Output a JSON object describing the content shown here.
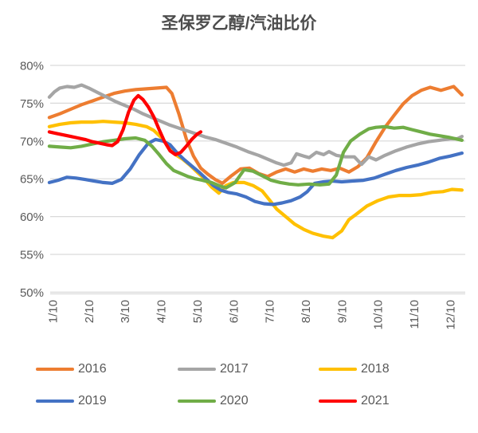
{
  "title": "圣保罗乙醇/汽油比价",
  "chart_data": {
    "type": "line",
    "title": "圣保罗乙醇/汽油比价",
    "grid": true,
    "legend_position": "bottom",
    "ylim": [
      50,
      80
    ],
    "xlim": [
      0.91,
      12.33
    ],
    "x_tick_labels": [
      "1/10",
      "2/10",
      "3/10",
      "4/10",
      "5/10",
      "6/10",
      "7/10",
      "8/10",
      "9/10",
      "10/10",
      "11/10",
      "12/10"
    ],
    "y_ticks": [
      {
        "value": 80,
        "label": "80%"
      },
      {
        "value": 75,
        "label": "75%"
      },
      {
        "value": 70,
        "label": "70%"
      },
      {
        "value": 65,
        "label": "65%"
      },
      {
        "value": 60,
        "label": "60%"
      },
      {
        "value": 55,
        "label": "55%"
      },
      {
        "value": 50,
        "label": "50%"
      }
    ],
    "series": [
      {
        "name": "2016",
        "color": "#ED7D31",
        "points": [
          [
            0.91,
            73.1
          ],
          [
            1.2,
            73.6
          ],
          [
            1.5,
            74.2
          ],
          [
            1.8,
            74.8
          ],
          [
            2.1,
            75.3
          ],
          [
            2.4,
            75.8
          ],
          [
            2.7,
            76.3
          ],
          [
            3.0,
            76.6
          ],
          [
            3.3,
            76.8
          ],
          [
            3.6,
            76.9
          ],
          [
            3.9,
            77.0
          ],
          [
            4.15,
            77.1
          ],
          [
            4.3,
            76.3
          ],
          [
            4.5,
            73.5
          ],
          [
            4.7,
            70.3
          ],
          [
            4.9,
            68.0
          ],
          [
            5.1,
            66.4
          ],
          [
            5.3,
            65.6
          ],
          [
            5.5,
            64.9
          ],
          [
            5.7,
            64.4
          ],
          [
            5.95,
            65.4
          ],
          [
            6.2,
            66.3
          ],
          [
            6.45,
            66.4
          ],
          [
            6.7,
            65.7
          ],
          [
            6.95,
            65.3
          ],
          [
            7.2,
            65.9
          ],
          [
            7.45,
            66.3
          ],
          [
            7.7,
            65.9
          ],
          [
            7.95,
            66.3
          ],
          [
            8.2,
            66.0
          ],
          [
            8.45,
            66.3
          ],
          [
            8.7,
            66.1
          ],
          [
            8.95,
            66.4
          ],
          [
            9.2,
            65.9
          ],
          [
            9.45,
            66.6
          ],
          [
            9.7,
            67.8
          ],
          [
            9.95,
            69.9
          ],
          [
            10.2,
            71.8
          ],
          [
            10.45,
            73.4
          ],
          [
            10.7,
            74.9
          ],
          [
            10.95,
            76.0
          ],
          [
            11.2,
            76.7
          ],
          [
            11.45,
            77.1
          ],
          [
            11.75,
            76.7
          ],
          [
            12.1,
            77.2
          ],
          [
            12.33,
            76.1
          ]
        ]
      },
      {
        "name": "2017",
        "color": "#A5A5A5",
        "points": [
          [
            0.91,
            75.8
          ],
          [
            1.05,
            76.5
          ],
          [
            1.2,
            77.0
          ],
          [
            1.4,
            77.2
          ],
          [
            1.6,
            77.1
          ],
          [
            1.8,
            77.4
          ],
          [
            2.0,
            77.0
          ],
          [
            2.25,
            76.4
          ],
          [
            2.5,
            75.8
          ],
          [
            2.75,
            75.2
          ],
          [
            3.0,
            74.7
          ],
          [
            3.25,
            74.2
          ],
          [
            3.5,
            73.6
          ],
          [
            3.75,
            73.1
          ],
          [
            4.0,
            72.6
          ],
          [
            4.25,
            72.1
          ],
          [
            4.5,
            71.7
          ],
          [
            4.75,
            71.3
          ],
          [
            5.0,
            70.9
          ],
          [
            5.25,
            70.5
          ],
          [
            5.5,
            70.2
          ],
          [
            5.8,
            69.7
          ],
          [
            6.1,
            69.2
          ],
          [
            6.4,
            68.6
          ],
          [
            6.7,
            68.1
          ],
          [
            6.95,
            67.6
          ],
          [
            7.2,
            67.1
          ],
          [
            7.4,
            66.8
          ],
          [
            7.6,
            67.1
          ],
          [
            7.75,
            68.3
          ],
          [
            7.95,
            68.0
          ],
          [
            8.1,
            67.8
          ],
          [
            8.3,
            68.5
          ],
          [
            8.5,
            68.2
          ],
          [
            8.65,
            68.6
          ],
          [
            8.85,
            68.1
          ],
          [
            9.1,
            67.9
          ],
          [
            9.35,
            67.9
          ],
          [
            9.55,
            66.9
          ],
          [
            9.75,
            67.9
          ],
          [
            9.95,
            67.5
          ],
          [
            10.2,
            68.1
          ],
          [
            10.5,
            68.7
          ],
          [
            10.8,
            69.2
          ],
          [
            11.1,
            69.6
          ],
          [
            11.4,
            69.9
          ],
          [
            11.7,
            70.1
          ],
          [
            12.0,
            70.3
          ],
          [
            12.2,
            70.3
          ],
          [
            12.33,
            70.6
          ]
        ]
      },
      {
        "name": "2018",
        "color": "#FFC000",
        "points": [
          [
            0.91,
            71.9
          ],
          [
            1.2,
            72.2
          ],
          [
            1.5,
            72.4
          ],
          [
            1.8,
            72.5
          ],
          [
            2.1,
            72.5
          ],
          [
            2.4,
            72.6
          ],
          [
            2.7,
            72.5
          ],
          [
            3.0,
            72.4
          ],
          [
            3.3,
            72.2
          ],
          [
            3.6,
            71.9
          ],
          [
            3.8,
            71.4
          ],
          [
            4.0,
            70.5
          ],
          [
            4.2,
            69.3
          ],
          [
            4.4,
            68.2
          ],
          [
            4.6,
            67.6
          ],
          [
            4.8,
            66.8
          ],
          [
            5.0,
            65.9
          ],
          [
            5.2,
            65.0
          ],
          [
            5.4,
            63.9
          ],
          [
            5.6,
            63.1
          ],
          [
            5.8,
            64.1
          ],
          [
            6.0,
            64.5
          ],
          [
            6.3,
            64.5
          ],
          [
            6.55,
            64.1
          ],
          [
            6.8,
            63.4
          ],
          [
            7.0,
            62.2
          ],
          [
            7.2,
            61.0
          ],
          [
            7.45,
            60.0
          ],
          [
            7.7,
            59.0
          ],
          [
            7.95,
            58.3
          ],
          [
            8.2,
            57.8
          ],
          [
            8.5,
            57.4
          ],
          [
            8.75,
            57.2
          ],
          [
            9.0,
            58.1
          ],
          [
            9.2,
            59.6
          ],
          [
            9.4,
            60.3
          ],
          [
            9.7,
            61.4
          ],
          [
            10.0,
            62.1
          ],
          [
            10.3,
            62.6
          ],
          [
            10.6,
            62.8
          ],
          [
            10.9,
            62.8
          ],
          [
            11.2,
            62.9
          ],
          [
            11.5,
            63.2
          ],
          [
            11.8,
            63.3
          ],
          [
            12.05,
            63.6
          ],
          [
            12.33,
            63.5
          ]
        ]
      },
      {
        "name": "2019",
        "color": "#4472C4",
        "points": [
          [
            0.91,
            64.5
          ],
          [
            1.15,
            64.8
          ],
          [
            1.4,
            65.2
          ],
          [
            1.65,
            65.1
          ],
          [
            1.9,
            64.9
          ],
          [
            2.15,
            64.7
          ],
          [
            2.4,
            64.5
          ],
          [
            2.65,
            64.4
          ],
          [
            2.9,
            64.9
          ],
          [
            3.15,
            66.3
          ],
          [
            3.4,
            68.2
          ],
          [
            3.65,
            69.7
          ],
          [
            3.85,
            70.2
          ],
          [
            4.05,
            70.0
          ],
          [
            4.25,
            69.5
          ],
          [
            4.45,
            68.4
          ],
          [
            4.65,
            67.5
          ],
          [
            4.85,
            66.7
          ],
          [
            5.05,
            65.9
          ],
          [
            5.25,
            65.0
          ],
          [
            5.45,
            64.1
          ],
          [
            5.65,
            63.5
          ],
          [
            5.85,
            63.2
          ],
          [
            6.1,
            63.0
          ],
          [
            6.35,
            62.6
          ],
          [
            6.6,
            62.0
          ],
          [
            6.85,
            61.7
          ],
          [
            7.1,
            61.6
          ],
          [
            7.35,
            61.8
          ],
          [
            7.6,
            62.1
          ],
          [
            7.85,
            62.6
          ],
          [
            8.05,
            63.3
          ],
          [
            8.25,
            64.4
          ],
          [
            8.5,
            64.6
          ],
          [
            8.75,
            64.7
          ],
          [
            9.0,
            64.6
          ],
          [
            9.3,
            64.7
          ],
          [
            9.6,
            64.8
          ],
          [
            9.9,
            65.1
          ],
          [
            10.2,
            65.6
          ],
          [
            10.5,
            66.1
          ],
          [
            10.8,
            66.5
          ],
          [
            11.1,
            66.8
          ],
          [
            11.4,
            67.2
          ],
          [
            11.7,
            67.7
          ],
          [
            12.0,
            68.0
          ],
          [
            12.33,
            68.4
          ]
        ]
      },
      {
        "name": "2020",
        "color": "#70AD47",
        "points": [
          [
            0.91,
            69.3
          ],
          [
            1.2,
            69.2
          ],
          [
            1.5,
            69.1
          ],
          [
            1.8,
            69.3
          ],
          [
            2.1,
            69.6
          ],
          [
            2.4,
            69.9
          ],
          [
            2.7,
            70.1
          ],
          [
            3.0,
            70.3
          ],
          [
            3.3,
            70.4
          ],
          [
            3.55,
            70.1
          ],
          [
            3.75,
            69.3
          ],
          [
            3.95,
            68.2
          ],
          [
            4.15,
            67.0
          ],
          [
            4.35,
            66.1
          ],
          [
            4.55,
            65.7
          ],
          [
            4.75,
            65.3
          ],
          [
            4.95,
            65.0
          ],
          [
            5.15,
            64.8
          ],
          [
            5.4,
            64.5
          ],
          [
            5.6,
            64.1
          ],
          [
            5.8,
            63.8
          ],
          [
            6.05,
            64.5
          ],
          [
            6.3,
            66.2
          ],
          [
            6.55,
            66.0
          ],
          [
            6.8,
            65.4
          ],
          [
            7.05,
            64.8
          ],
          [
            7.3,
            64.5
          ],
          [
            7.55,
            64.3
          ],
          [
            7.8,
            64.2
          ],
          [
            8.1,
            64.3
          ],
          [
            8.4,
            64.2
          ],
          [
            8.65,
            64.3
          ],
          [
            8.85,
            65.5
          ],
          [
            9.05,
            68.5
          ],
          [
            9.25,
            70.0
          ],
          [
            9.5,
            70.9
          ],
          [
            9.75,
            71.6
          ],
          [
            9.95,
            71.8
          ],
          [
            10.2,
            71.9
          ],
          [
            10.45,
            71.7
          ],
          [
            10.7,
            71.8
          ],
          [
            10.95,
            71.5
          ],
          [
            11.2,
            71.2
          ],
          [
            11.45,
            70.9
          ],
          [
            11.7,
            70.7
          ],
          [
            11.95,
            70.5
          ],
          [
            12.15,
            70.3
          ],
          [
            12.33,
            70.1
          ]
        ]
      },
      {
        "name": "2021",
        "color": "#FF0000",
        "points": [
          [
            0.91,
            71.2
          ],
          [
            1.1,
            71.0
          ],
          [
            1.3,
            70.8
          ],
          [
            1.5,
            70.6
          ],
          [
            1.7,
            70.4
          ],
          [
            1.9,
            70.2
          ],
          [
            2.1,
            69.9
          ],
          [
            2.3,
            69.7
          ],
          [
            2.5,
            69.5
          ],
          [
            2.65,
            69.4
          ],
          [
            2.8,
            69.9
          ],
          [
            2.95,
            71.5
          ],
          [
            3.1,
            73.8
          ],
          [
            3.25,
            75.4
          ],
          [
            3.37,
            76.0
          ],
          [
            3.5,
            75.5
          ],
          [
            3.65,
            74.5
          ],
          [
            3.8,
            73.2
          ],
          [
            3.95,
            71.5
          ],
          [
            4.1,
            69.9
          ],
          [
            4.25,
            68.7
          ],
          [
            4.4,
            68.2
          ],
          [
            4.55,
            68.5
          ],
          [
            4.7,
            69.3
          ],
          [
            4.85,
            70.2
          ],
          [
            5.0,
            70.9
          ],
          [
            5.1,
            71.2
          ]
        ]
      }
    ]
  },
  "legend": {
    "rows": [
      [
        "2016",
        "2017",
        "2018"
      ],
      [
        "2019",
        "2020",
        "2021"
      ]
    ]
  },
  "style": {
    "gridline_color": "#d9d9d9",
    "tick_label_color": "#595959",
    "title_color": "#4d4d4d"
  }
}
